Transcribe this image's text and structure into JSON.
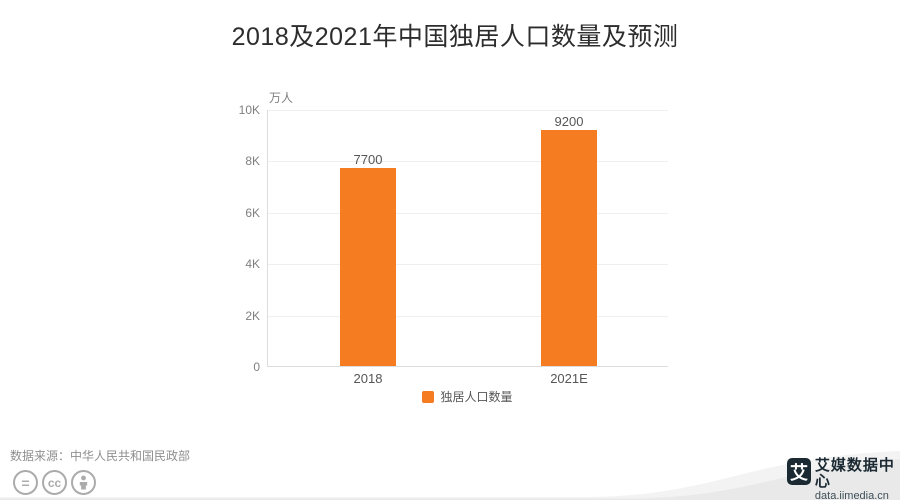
{
  "title": "2018及2021年中国独居人口数量及预测",
  "chart_data": {
    "type": "bar",
    "categories": [
      "2018",
      "2021E"
    ],
    "values": [
      7700,
      9200
    ],
    "value_labels": [
      "7700",
      "9200"
    ],
    "series_name": "独居人口数量",
    "unit_label": "万人",
    "y_ticks": [
      "10K",
      "8K",
      "6K",
      "4K",
      "2K",
      "0"
    ],
    "ylim": [
      0,
      10000
    ],
    "grid": true,
    "legend_position": "bottom",
    "bar_color": "#F57C21"
  },
  "legend": {
    "label": "独居人口数量",
    "swatch_color": "#F57C21"
  },
  "source": {
    "text": "数据来源：中华人民共和国民政部"
  },
  "license_icons": {
    "equals_glyph": "=",
    "cc_glyph": "cc",
    "person_icon": "attribution-person"
  },
  "branding": {
    "logo_glyph": "艾",
    "name": "艾媒数据中心",
    "url": "data.iimedia.cn"
  },
  "colors": {
    "accent_orange": "#F57C21",
    "axis_line": "#dcdcdc",
    "gridline": "#efefef",
    "title_text": "#2d2d2d",
    "tick_text": "#7f7f7f",
    "muted_text": "#8f8f8f",
    "brand_dark": "#1b2a32",
    "swoosh_gray": "#e9e9e9"
  }
}
